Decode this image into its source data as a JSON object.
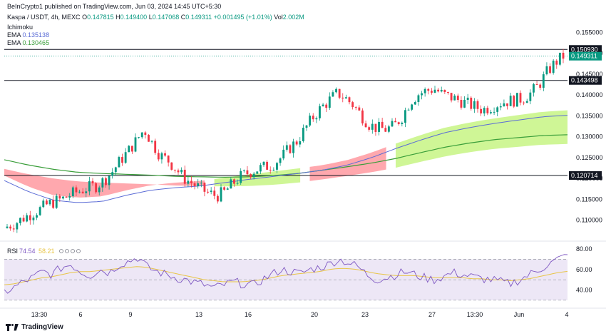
{
  "header": {
    "publisher": "BeInCrypto1 published on TradingView.com, Jun 03, 2024 14:45 UTC+5:30"
  },
  "symbol_line": {
    "symbol": "Kaspa / USDT, 4h, MEXC",
    "o_label": "O",
    "o_value": "0.147815",
    "h_label": "H",
    "h_value": "0.149400",
    "l_label": "L",
    "l_value": "0.147068",
    "c_label": "C",
    "c_value": "0.149311",
    "change": "+0.001495 (+1.01%)",
    "vol_label": "Vol",
    "vol_value": "2.002M"
  },
  "indicators": {
    "ichimoku": "Ichimoku",
    "ema1_label": "EMA",
    "ema1_value": "0.135138",
    "ema2_label": "EMA",
    "ema2_value": "0.130465"
  },
  "colors": {
    "up": "#089981",
    "down": "#f23645",
    "ema_fast": "#5b6cd6",
    "ema_slow": "#3a9e3a",
    "cloud_bull": "#ccf590",
    "cloud_bear": "#ffa3aa",
    "rsi": "#7e57c2",
    "rsi_ma": "#e8c547",
    "rsi_band": "#ede7f6"
  },
  "chart_data": {
    "type": "candlestick",
    "price_axis": {
      "ticks": [
        "0.155000",
        "0.150000",
        "0.145000",
        "0.140000",
        "0.135000",
        "0.130000",
        "0.125000",
        "0.120000",
        "0.115000",
        "0.110000"
      ],
      "ylim": [
        0.1055,
        0.1585
      ]
    },
    "time_axis": {
      "ticks": [
        "13:30",
        "6",
        "9",
        "13",
        "16",
        "20",
        "23",
        "27",
        "13:30",
        "Jun",
        "4"
      ]
    },
    "horizontal_levels": [
      {
        "label": "0.150930",
        "value": 0.15093,
        "style": "black"
      },
      {
        "label": "0.149311",
        "value": 0.149311,
        "style": "last-price"
      },
      {
        "label": "0.143498",
        "value": 0.143498,
        "style": "black"
      },
      {
        "label": "0.120714",
        "value": 0.120714,
        "style": "black"
      }
    ],
    "candle_anchors_close": [
      0.1085,
      0.1093,
      0.1105,
      0.1116,
      0.1125,
      0.1138,
      0.1145,
      0.1152,
      0.1163,
      0.117,
      0.1178,
      0.1182,
      0.1195,
      0.1215,
      0.1242,
      0.1265,
      0.129,
      0.1318,
      0.1285,
      0.1255,
      0.1243,
      0.1222,
      0.12,
      0.1188,
      0.1175,
      0.1165,
      0.1158,
      0.1168,
      0.1188,
      0.1205,
      0.1215,
      0.1222,
      0.1228,
      0.1235,
      0.125,
      0.1272,
      0.129,
      0.132,
      0.1348,
      0.137,
      0.1388,
      0.1405,
      0.1392,
      0.1375,
      0.135,
      0.1328,
      0.132,
      0.1318,
      0.1325,
      0.1348,
      0.1385,
      0.1402,
      0.141,
      0.1415,
      0.1402,
      0.1395,
      0.1388,
      0.138,
      0.1372,
      0.1365,
      0.1372,
      0.138,
      0.1385,
      0.1388,
      0.1392,
      0.1405,
      0.1425,
      0.1455,
      0.1478,
      0.14931
    ],
    "ema_fast_anchors": [
      0.1195,
      0.1168,
      0.1148,
      0.1142,
      0.1145,
      0.116,
      0.1172,
      0.1178,
      0.1182,
      0.119,
      0.1198,
      0.1205,
      0.1212,
      0.122,
      0.1232,
      0.125,
      0.1272,
      0.1292,
      0.131,
      0.1322,
      0.1332,
      0.134,
      0.1348,
      0.13514
    ],
    "ema_slow_anchors": [
      0.1245,
      0.1232,
      0.1222,
      0.1215,
      0.1212,
      0.121,
      0.1208,
      0.1205,
      0.1204,
      0.1203,
      0.1204,
      0.1207,
      0.1212,
      0.122,
      0.1228,
      0.1237,
      0.1248,
      0.1262,
      0.1275,
      0.1285,
      0.1293,
      0.1298,
      0.1303,
      0.13047
    ],
    "rsi": {
      "label": "RSI",
      "value": "74.54",
      "ma_value": "58.21",
      "axis_ticks": [
        "80.00",
        "60.00",
        "40.00"
      ],
      "ylim": [
        25,
        85
      ],
      "bands": [
        70,
        50,
        30
      ],
      "series": [
        38,
        42,
        48,
        52,
        58,
        55,
        62,
        65,
        58,
        54,
        60,
        57,
        65,
        68,
        72,
        62,
        58,
        55,
        52,
        50,
        47,
        45,
        42,
        45,
        48,
        46,
        44,
        50,
        55,
        60,
        58,
        56,
        60,
        62,
        65,
        70,
        67,
        63,
        55,
        50,
        52,
        55,
        58,
        55,
        52,
        50,
        53,
        57,
        55,
        53,
        51,
        50,
        48,
        46,
        50,
        55,
        60,
        65,
        70,
        74.54
      ],
      "ma_series": [
        45,
        46,
        48,
        50,
        52,
        53,
        55,
        57,
        58,
        58,
        59,
        60,
        61,
        62,
        63,
        62,
        60,
        58,
        56,
        54,
        52,
        50,
        49,
        48,
        48,
        48,
        49,
        50,
        52,
        54,
        55,
        56,
        57,
        58,
        60,
        61,
        61,
        60,
        58,
        56,
        55,
        54,
        54,
        54,
        53,
        52,
        52,
        52,
        52,
        51,
        51,
        50,
        50,
        49,
        50,
        51,
        53,
        55,
        57,
        58.21
      ]
    }
  },
  "footer": {
    "brand": "TradingView"
  }
}
